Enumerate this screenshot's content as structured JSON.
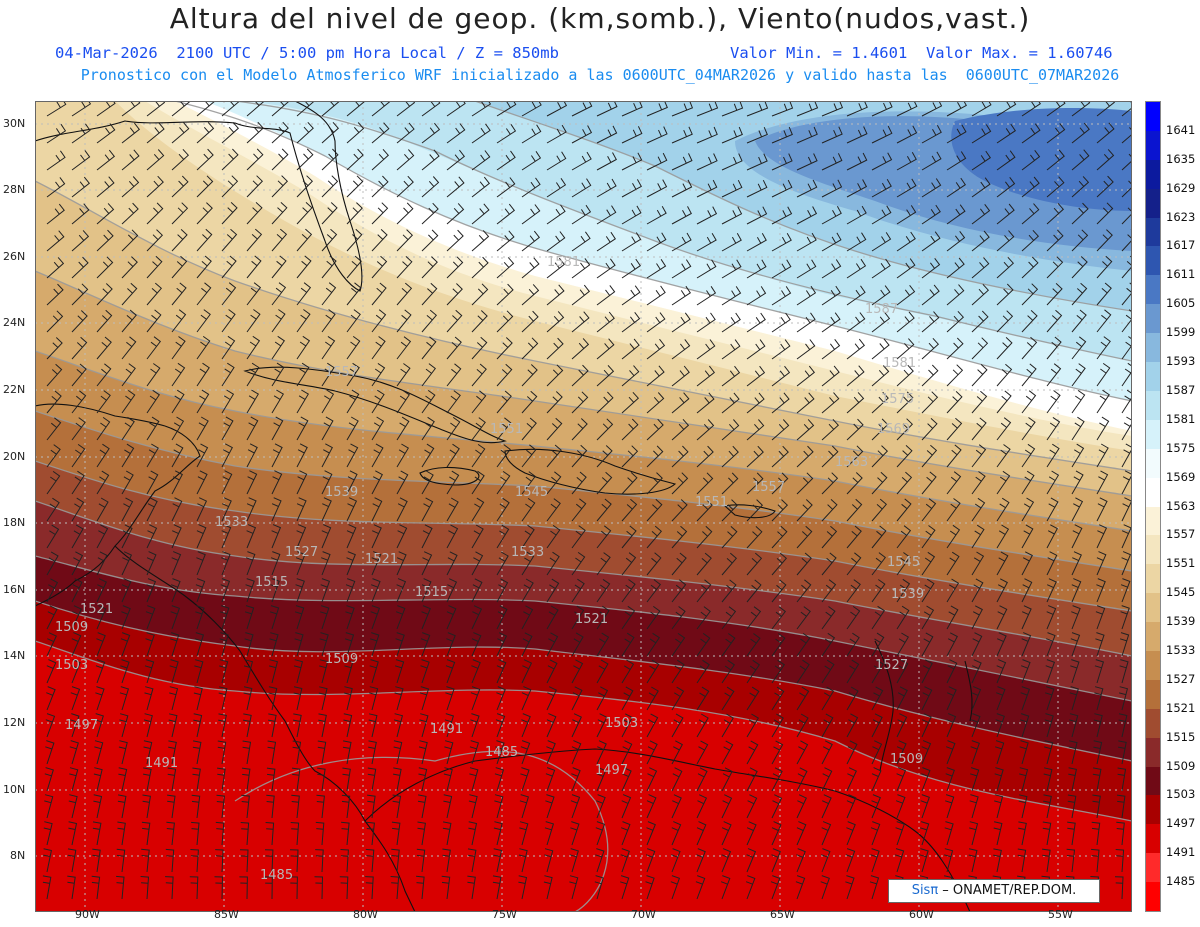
{
  "title": "Altura del nivel de geop. (km,somb.), Viento(nudos,vast.)",
  "subtitle_left": "04-Mar-2026  2100 UTC / 5:00 pm Hora Local / Z = 850mb",
  "subtitle_right": "Valor Min. = 1.4601  Valor Max. = 1.60746",
  "subtitle2": "Pronostico con el Modelo Atmosferico WRF inicializado a las 0600UTC_04MAR2026 y valido hasta las  0600UTC_07MAR2026",
  "lat_labels": [
    "30N",
    "28N",
    "26N",
    "24N",
    "22N",
    "20N",
    "18N",
    "16N",
    "14N",
    "12N",
    "10N",
    "8N"
  ],
  "lon_labels": [
    "90W",
    "85W",
    "80W",
    "75W",
    "70W",
    "65W",
    "60W",
    "55W"
  ],
  "colorbar": {
    "labels": [
      "1641",
      "1635",
      "1629",
      "1623",
      "1617",
      "1611",
      "1605",
      "1599",
      "1593",
      "1587",
      "1581",
      "1575",
      "1569",
      "1563",
      "1557",
      "1551",
      "1545",
      "1539",
      "1533",
      "1527",
      "1521",
      "1515",
      "1509",
      "1503",
      "1497",
      "1491",
      "1485"
    ],
    "colors": [
      "#0000ff",
      "#0a14d0",
      "#0c1a9e",
      "#14208a",
      "#1e3a9c",
      "#2e56b0",
      "#4a78c4",
      "#6a98d0",
      "#88b8de",
      "#a2d2ea",
      "#bce4f2",
      "#d6f2fa",
      "#f2fbfd",
      "#ffffff",
      "#fbf2d8",
      "#f4e6c0",
      "#ecd6a4",
      "#e2c288",
      "#d6aa6c",
      "#c68e50",
      "#b4703a",
      "#a04c30",
      "#8a2a2a",
      "#700a16",
      "#a80000",
      "#d80000",
      "#ff2a2a",
      "#ff0000"
    ]
  },
  "contour_labels": [
    {
      "text": "1581"
    },
    {
      "text": "1587"
    },
    {
      "text": "1581"
    },
    {
      "text": "1575"
    },
    {
      "text": "1569"
    },
    {
      "text": "1563"
    },
    {
      "text": "1557"
    },
    {
      "text": "1557"
    },
    {
      "text": "1551"
    },
    {
      "text": "1551"
    },
    {
      "text": "1545"
    },
    {
      "text": "1545"
    },
    {
      "text": "1539"
    },
    {
      "text": "1539"
    },
    {
      "text": "1533"
    },
    {
      "text": "1533"
    },
    {
      "text": "1527"
    },
    {
      "text": "1527"
    },
    {
      "text": "1521"
    },
    {
      "text": "1521"
    },
    {
      "text": "1521"
    },
    {
      "text": "1515"
    },
    {
      "text": "1515"
    },
    {
      "text": "1509"
    },
    {
      "text": "1509"
    },
    {
      "text": "1509"
    },
    {
      "text": "1503"
    },
    {
      "text": "1503"
    },
    {
      "text": "1497"
    },
    {
      "text": "1497"
    },
    {
      "text": "1491"
    },
    {
      "text": "1491"
    },
    {
      "text": "1485"
    },
    {
      "text": "1485"
    }
  ],
  "credit": {
    "sis": "Sisπ",
    "rest": " – ONAMET/REP.DOM."
  }
}
